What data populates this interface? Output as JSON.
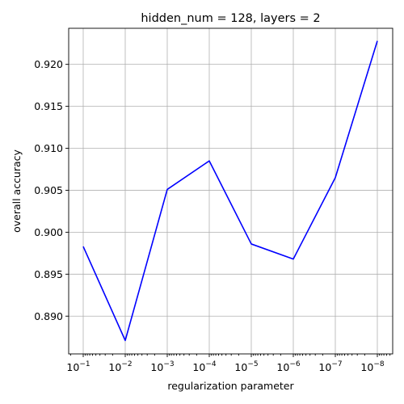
{
  "chart_data": {
    "type": "line",
    "title": "hidden_num = 128, layers = 2",
    "xlabel": "regularization parameter",
    "ylabel": "overall accuracy",
    "x_scale": "log-reversed",
    "x_base_label": "10",
    "x_exponents": [
      "−1",
      "−2",
      "−3",
      "−4",
      "−5",
      "−6",
      "−7",
      "−8"
    ],
    "x": [
      0.1,
      0.01,
      0.001,
      0.0001,
      1e-05,
      1e-06,
      1e-07,
      1e-08
    ],
    "series": [
      {
        "values": [
          0.8983,
          0.8871,
          0.9051,
          0.9085,
          0.8986,
          0.8968,
          0.9065,
          0.9228
        ],
        "color": "#0000ff"
      }
    ],
    "ylim": [
      0.8855,
      0.9243
    ],
    "yticks": [
      "0.890",
      "0.895",
      "0.900",
      "0.905",
      "0.910",
      "0.915",
      "0.920"
    ],
    "grid": true
  }
}
